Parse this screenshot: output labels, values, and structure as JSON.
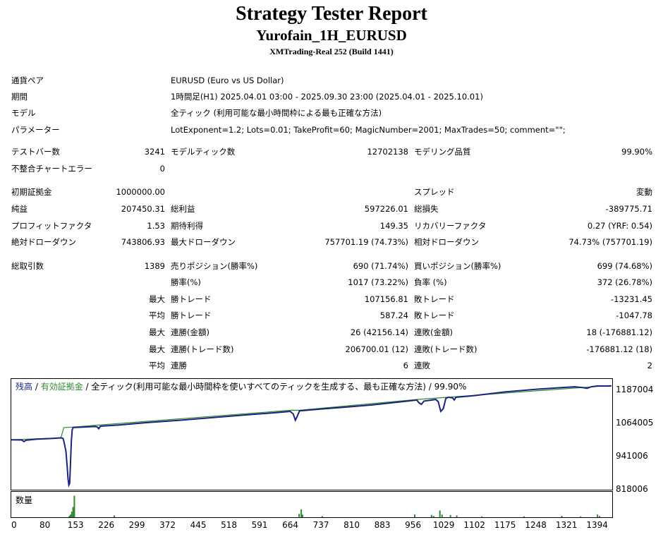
{
  "header": {
    "title": "Strategy Tester Report",
    "ea_name": "Yurofain_1H_EURUSD",
    "server": "XMTrading-Real 252 (Build 1441)"
  },
  "info": {
    "pair_label": "通貨ペア",
    "pair_value": "EURUSD (Euro vs US Dollar)",
    "period_label": "期間",
    "period_value": "1時間足(H1) 2025.04.01 03:00 - 2025.09.30 23:00 (2025.04.01 - 2025.10.01)",
    "model_label": "モデル",
    "model_value": "全ティック (利用可能な最小時間枠による最も正確な方法)",
    "params_label": "パラメーター",
    "params_value": "LotExponent=1.2; Lots=0.01; TakeProfit=60; MagicNumber=2001; MaxTrades=50; comment=\"\";"
  },
  "stats": {
    "bars_label": "テストバー数",
    "bars_value": "3241",
    "ticks_label": "モデルティック数",
    "ticks_value": "12702138",
    "quality_label": "モデリング品質",
    "quality_value": "99.90%",
    "mismatch_label": "不整合チャートエラー",
    "mismatch_value": "0",
    "deposit_label": "初期証拠金",
    "deposit_value": "1000000.00",
    "spread_label": "スプレッド",
    "spread_value": "変動",
    "net_label": "純益",
    "net_value": "207450.31",
    "gross_profit_label": "総利益",
    "gross_profit_value": "597226.01",
    "gross_loss_label": "総損失",
    "gross_loss_value": "-389775.71",
    "pf_label": "プロフィットファクタ",
    "pf_value": "1.53",
    "expected_label": "期待利得",
    "expected_value": "149.35",
    "recovery_label": "リカバリーファクタ",
    "recovery_value": "0.27 (YRF: 0.54)",
    "abs_dd_label": "絶対ドローダウン",
    "abs_dd_value": "743806.93",
    "max_dd_label": "最大ドローダウン",
    "max_dd_value": "757701.19 (74.73%)",
    "rel_dd_label": "相対ドローダウン",
    "rel_dd_value": "74.73% (757701.19)",
    "total_trades_label": "総取引数",
    "total_trades_value": "1389",
    "short_label": "売りポジション(勝率%)",
    "short_value": "690 (71.74%)",
    "long_label": "買いポジション(勝率%)",
    "long_value": "699 (74.68%)",
    "win_rate_label": "勝率(%)",
    "win_rate_value": "1017 (73.22%)",
    "loss_rate_label": "負率 (%)",
    "loss_rate_value": "372 (26.78%)",
    "max1_label": "最大",
    "max_win_label": "勝トレード",
    "max_win_value": "107156.81",
    "max_loss_label": "敗トレード",
    "max_loss_value": "-13231.45",
    "avg1_label": "平均",
    "avg_win_label": "勝トレード",
    "avg_win_value": "587.24",
    "avg_loss_label": "敗トレード",
    "avg_loss_value": "-1047.78",
    "max2_label": "最大",
    "cons_win_money_label": "連勝(金額)",
    "cons_win_money_value": "26 (42156.14)",
    "cons_loss_money_label": "連敗(金額)",
    "cons_loss_money_value": "18 (-176881.12)",
    "max3_label": "最大",
    "cons_win_count_label": "連勝(トレード数)",
    "cons_win_count_value": "206700.01 (12)",
    "cons_loss_count_label": "連敗(トレード数)",
    "cons_loss_count_value": "-176881.12 (18)",
    "avg2_label": "平均",
    "avg_cons_win_label": "連勝",
    "avg_cons_win_value": "6",
    "avg_cons_loss_label": "連敗",
    "avg_cons_loss_value": "2"
  },
  "legend": {
    "balance": "残高",
    "sep1": " / ",
    "equity": "有効証拠金",
    "rest": " / 全ティック(利用可能な最小時間枠を使いすべてのティックを生成する、最も正確な方法) / 99.90%",
    "volume": "数量"
  },
  "colors": {
    "balance": "#1a237e",
    "equity": "#2e8b2e",
    "volume": "#2e8b2e"
  },
  "chart_data": {
    "type": "line",
    "xlabel": "",
    "ylabel": "",
    "xlim": [
      0,
      1430
    ],
    "ylim": [
      818006,
      1228000
    ],
    "x_ticks": [
      0,
      80,
      153,
      226,
      299,
      372,
      445,
      518,
      591,
      664,
      737,
      810,
      883,
      956,
      1029,
      1102,
      1175,
      1248,
      1321,
      1394
    ],
    "y_ticks": [
      818006,
      941006,
      1064005,
      1187004
    ],
    "series": [
      {
        "name": "残高",
        "points": [
          [
            0,
            1003000
          ],
          [
            25,
            1002000
          ],
          [
            30,
            996000
          ],
          [
            35,
            1001000
          ],
          [
            60,
            1005000
          ],
          [
            100,
            1008000
          ],
          [
            118,
            1010000
          ],
          [
            123,
            1008000
          ],
          [
            125,
            998000
          ],
          [
            130,
            960000
          ],
          [
            133,
            905000
          ],
          [
            135,
            860000
          ],
          [
            137,
            835000
          ],
          [
            139,
            842000
          ],
          [
            141,
            920000
          ],
          [
            143,
            1000000
          ],
          [
            145,
            1040000
          ],
          [
            147,
            1048000
          ],
          [
            200,
            1052000
          ],
          [
            205,
            1050000
          ],
          [
            208,
            1044000
          ],
          [
            212,
            1053000
          ],
          [
            260,
            1058000
          ],
          [
            320,
            1066000
          ],
          [
            400,
            1075000
          ],
          [
            480,
            1085000
          ],
          [
            560,
            1095000
          ],
          [
            620,
            1102000
          ],
          [
            664,
            1108000
          ],
          [
            671,
            1098000
          ],
          [
            676,
            1075000
          ],
          [
            680,
            1088000
          ],
          [
            686,
            1110000
          ],
          [
            740,
            1117000
          ],
          [
            800,
            1124000
          ],
          [
            860,
            1132000
          ],
          [
            920,
            1142000
          ],
          [
            965,
            1150000
          ],
          [
            970,
            1140000
          ],
          [
            976,
            1134000
          ],
          [
            982,
            1146000
          ],
          [
            1010,
            1152000
          ],
          [
            1016,
            1144000
          ],
          [
            1022,
            1108000
          ],
          [
            1028,
            1118000
          ],
          [
            1034,
            1156000
          ],
          [
            1040,
            1160000
          ],
          [
            1050,
            1158000
          ],
          [
            1054,
            1150000
          ],
          [
            1058,
            1160000
          ],
          [
            1100,
            1166000
          ],
          [
            1175,
            1180000
          ],
          [
            1250,
            1190000
          ],
          [
            1300,
            1195000
          ],
          [
            1340,
            1199000
          ],
          [
            1360,
            1196000
          ],
          [
            1370,
            1193000
          ],
          [
            1380,
            1199000
          ],
          [
            1394,
            1202000
          ],
          [
            1428,
            1202000
          ]
        ]
      },
      {
        "name": "有効証拠金",
        "points": [
          [
            0,
            1003000
          ],
          [
            118,
            1010000
          ],
          [
            125,
            1048000
          ],
          [
            147,
            1050000
          ],
          [
            664,
            1112000
          ],
          [
            686,
            1112000
          ],
          [
            965,
            1152000
          ],
          [
            1428,
            1204000
          ]
        ]
      },
      {
        "name": "数量",
        "bars": [
          [
            150,
            0.95
          ],
          [
            147,
            0.45
          ],
          [
            144,
            0.25
          ],
          [
            141,
            0.12
          ],
          [
            138,
            0.06
          ],
          [
            245,
            0.08
          ],
          [
            690,
            0.35
          ],
          [
            685,
            0.15
          ],
          [
            693,
            0.12
          ],
          [
            740,
            0.05
          ],
          [
            960,
            0.12
          ],
          [
            1000,
            0.1
          ],
          [
            1005,
            0.06
          ],
          [
            1020,
            0.3
          ],
          [
            1025,
            0.12
          ],
          [
            1045,
            0.1
          ],
          [
            1060,
            0.08
          ],
          [
            1120,
            0.04
          ],
          [
            1220,
            0.04
          ],
          [
            1310,
            0.06
          ],
          [
            1355,
            0.04
          ],
          [
            1395,
            0.12
          ],
          [
            1400,
            0.06
          ]
        ]
      }
    ]
  }
}
